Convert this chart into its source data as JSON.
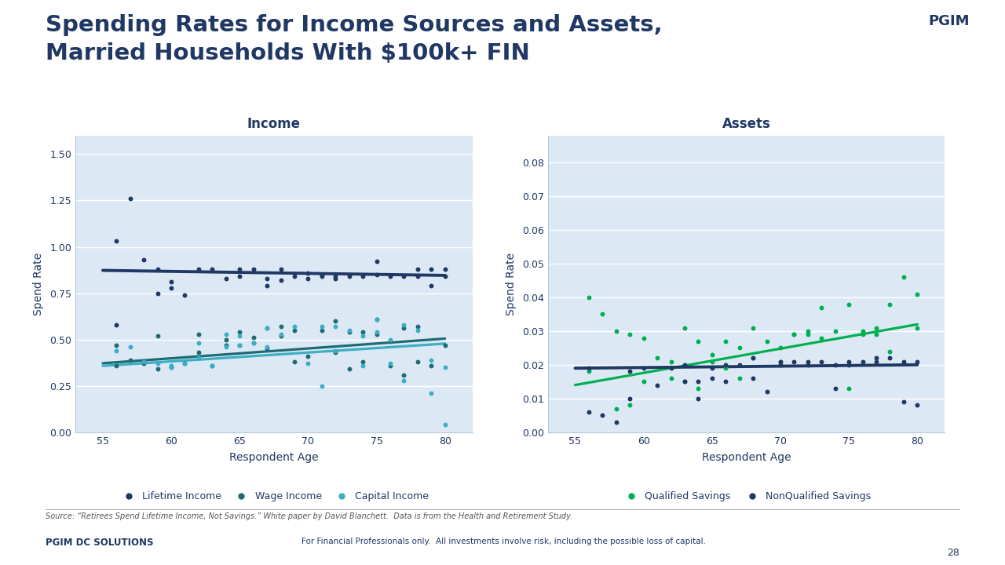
{
  "title_line1": "Spending Rates for Income Sources and Assets,",
  "title_line2": "Married Households With $100k+ FIN",
  "title_color": "#1f3864",
  "title_fontsize": 21,
  "background_color": "#ffffff",
  "income_title": "Income",
  "assets_title": "Assets",
  "xlabel": "Respondent Age",
  "ylabel": "Spend Rate",
  "income_ylim": [
    0.0,
    1.6
  ],
  "income_yticks": [
    0.0,
    0.25,
    0.5,
    0.75,
    1.0,
    1.25,
    1.5
  ],
  "income_ytick_labels": [
    "0.00",
    "0.25",
    "0.50",
    "0.75",
    "1.00",
    "1.25",
    "1.50"
  ],
  "assets_ylim": [
    0.0,
    0.088
  ],
  "assets_yticks": [
    0.0,
    0.01,
    0.02,
    0.03,
    0.04,
    0.05,
    0.06,
    0.07,
    0.08
  ],
  "assets_ytick_labels": [
    "0.00",
    "0.01",
    "0.02",
    "0.03",
    "0.04",
    "0.05",
    "0.06",
    "0.07",
    "0.08"
  ],
  "xlim": [
    53,
    82
  ],
  "xticks": [
    55,
    60,
    65,
    70,
    75,
    80
  ],
  "dark_navy": "#1f3864",
  "teal_dark": "#1e6b72",
  "teal_light": "#3baec6",
  "green_bright": "#00b050",
  "income_legend": [
    "Lifetime Income",
    "Wage Income",
    "Capital Income"
  ],
  "income_legend_colors": [
    "#1f3864",
    "#1e6b72",
    "#3baec6"
  ],
  "assets_legend": [
    "Qualified Savings",
    "NonQualified Savings"
  ],
  "assets_legend_colors": [
    "#00b050",
    "#1f3864"
  ],
  "lifetime_income_scatter_x": [
    56,
    56,
    57,
    58,
    59,
    59,
    60,
    60,
    61,
    62,
    63,
    64,
    65,
    65,
    66,
    67,
    67,
    68,
    68,
    69,
    70,
    70,
    71,
    71,
    72,
    72,
    73,
    74,
    75,
    75,
    76,
    77,
    78,
    78,
    79,
    79,
    80,
    80
  ],
  "lifetime_income_scatter_y": [
    1.03,
    0.58,
    1.26,
    0.93,
    0.88,
    0.75,
    0.81,
    0.78,
    0.74,
    0.88,
    0.88,
    0.83,
    0.88,
    0.84,
    0.88,
    0.79,
    0.83,
    0.88,
    0.82,
    0.84,
    0.86,
    0.83,
    0.85,
    0.84,
    0.83,
    0.84,
    0.84,
    0.84,
    0.92,
    0.85,
    0.84,
    0.84,
    0.88,
    0.84,
    0.88,
    0.79,
    0.88,
    0.84
  ],
  "lifetime_income_trend": [
    0.873,
    0.846
  ],
  "wage_income_scatter_x": [
    56,
    56,
    57,
    58,
    59,
    59,
    60,
    61,
    62,
    62,
    63,
    64,
    64,
    65,
    65,
    66,
    66,
    67,
    67,
    68,
    68,
    69,
    69,
    70,
    71,
    72,
    72,
    73,
    73,
    74,
    74,
    75,
    75,
    76,
    76,
    77,
    77,
    78,
    78,
    79,
    80
  ],
  "wage_income_scatter_y": [
    0.47,
    0.36,
    0.39,
    0.37,
    0.34,
    0.52,
    0.35,
    0.37,
    0.43,
    0.53,
    0.36,
    0.47,
    0.5,
    0.47,
    0.54,
    0.51,
    0.48,
    0.45,
    0.56,
    0.52,
    0.57,
    0.38,
    0.55,
    0.41,
    0.55,
    0.43,
    0.6,
    0.54,
    0.34,
    0.54,
    0.38,
    0.53,
    0.61,
    0.36,
    0.49,
    0.56,
    0.31,
    0.57,
    0.38,
    0.36,
    0.47
  ],
  "wage_income_trend": [
    0.372,
    0.505
  ],
  "capital_income_scatter_x": [
    56,
    57,
    58,
    59,
    60,
    60,
    61,
    62,
    62,
    63,
    64,
    64,
    65,
    65,
    66,
    67,
    67,
    68,
    69,
    70,
    71,
    71,
    72,
    72,
    73,
    74,
    74,
    75,
    75,
    76,
    76,
    77,
    77,
    78,
    79,
    79,
    80,
    80
  ],
  "capital_income_scatter_y": [
    0.44,
    0.46,
    0.38,
    0.37,
    0.35,
    0.36,
    0.37,
    0.4,
    0.48,
    0.36,
    0.46,
    0.53,
    0.47,
    0.52,
    0.48,
    0.46,
    0.56,
    0.53,
    0.57,
    0.37,
    0.57,
    0.25,
    0.44,
    0.57,
    0.55,
    0.36,
    0.52,
    0.54,
    0.61,
    0.37,
    0.5,
    0.58,
    0.28,
    0.55,
    0.39,
    0.21,
    0.35,
    0.04
  ],
  "capital_income_trend": [
    0.358,
    0.478
  ],
  "qualified_scatter_x": [
    56,
    56,
    57,
    58,
    58,
    59,
    59,
    60,
    60,
    61,
    62,
    62,
    63,
    63,
    64,
    64,
    65,
    65,
    66,
    66,
    67,
    67,
    68,
    68,
    69,
    70,
    70,
    71,
    71,
    72,
    72,
    73,
    73,
    74,
    75,
    75,
    76,
    76,
    77,
    77,
    78,
    78,
    79,
    80,
    80
  ],
  "qualified_scatter_y": [
    0.04,
    0.018,
    0.035,
    0.03,
    0.007,
    0.029,
    0.008,
    0.028,
    0.015,
    0.022,
    0.021,
    0.016,
    0.031,
    0.015,
    0.027,
    0.013,
    0.021,
    0.023,
    0.027,
    0.019,
    0.025,
    0.016,
    0.031,
    0.022,
    0.027,
    0.025,
    0.021,
    0.029,
    0.029,
    0.03,
    0.029,
    0.028,
    0.037,
    0.03,
    0.038,
    0.013,
    0.03,
    0.029,
    0.031,
    0.029,
    0.038,
    0.024,
    0.046,
    0.031,
    0.041
  ],
  "qualified_trend": [
    0.014,
    0.032
  ],
  "nonqualified_scatter_x": [
    56,
    56,
    57,
    58,
    59,
    59,
    60,
    61,
    62,
    63,
    63,
    64,
    64,
    65,
    65,
    66,
    66,
    67,
    68,
    68,
    69,
    70,
    70,
    71,
    72,
    72,
    73,
    74,
    74,
    75,
    75,
    76,
    77,
    77,
    78,
    79,
    79,
    80,
    80
  ],
  "nonqualified_scatter_y": [
    0.019,
    0.006,
    0.005,
    0.003,
    0.01,
    0.018,
    0.019,
    0.014,
    0.019,
    0.02,
    0.015,
    0.015,
    0.01,
    0.016,
    0.019,
    0.02,
    0.015,
    0.02,
    0.022,
    0.016,
    0.012,
    0.021,
    0.02,
    0.021,
    0.02,
    0.021,
    0.021,
    0.02,
    0.013,
    0.021,
    0.02,
    0.021,
    0.022,
    0.021,
    0.022,
    0.021,
    0.009,
    0.021,
    0.008
  ],
  "nonqualified_trend": [
    0.019,
    0.02
  ],
  "source_text": "Source: “Retirees Spend Lifetime Income, Not Savings.” White paper by David Blanchett.  Data is from the Health and Retirement Study.",
  "footer_left": "PGIM DC SOLUTIONS",
  "footer_right": "For Financial Professionals only.  All investments involve risk, including the possible loss of capital.",
  "page_number": "28",
  "plot_bg_color": "#dce9f5",
  "grid_color": "#ffffff",
  "axis_label_color": "#1f3864"
}
